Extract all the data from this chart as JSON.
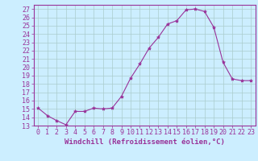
{
  "x": [
    0,
    1,
    2,
    3,
    4,
    5,
    6,
    7,
    8,
    9,
    10,
    11,
    12,
    13,
    14,
    15,
    16,
    17,
    18,
    19,
    20,
    21,
    22,
    23
  ],
  "y": [
    15.1,
    14.2,
    13.6,
    13.1,
    14.7,
    14.7,
    15.1,
    15.0,
    15.1,
    16.5,
    18.7,
    20.4,
    22.3,
    23.6,
    25.2,
    25.6,
    26.9,
    27.0,
    26.7,
    24.8,
    20.6,
    18.6,
    18.4,
    18.4
  ],
  "line_color": "#993399",
  "marker": "*",
  "bg_color": "#cceeff",
  "grid_color": "#aacccc",
  "xlabel": "Windchill (Refroidissement éolien,°C)",
  "xlim": [
    -0.5,
    23.5
  ],
  "ylim": [
    13,
    27.5
  ],
  "yticks": [
    13,
    14,
    15,
    16,
    17,
    18,
    19,
    20,
    21,
    22,
    23,
    24,
    25,
    26,
    27
  ],
  "xticks": [
    0,
    1,
    2,
    3,
    4,
    5,
    6,
    7,
    8,
    9,
    10,
    11,
    12,
    13,
    14,
    15,
    16,
    17,
    18,
    19,
    20,
    21,
    22,
    23
  ],
  "tick_color": "#993399",
  "spine_color": "#993399",
  "label_color": "#993399",
  "font_size": 6,
  "xlabel_fontsize": 6.5,
  "marker_size": 3
}
